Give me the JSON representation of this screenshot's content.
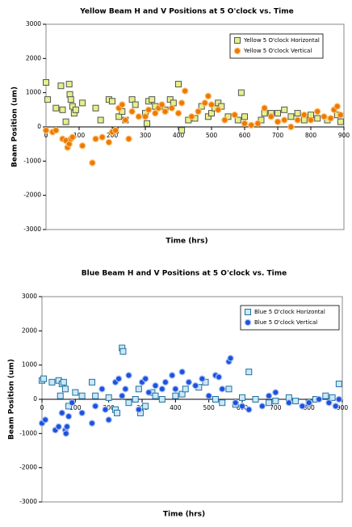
{
  "chart_data": [
    {
      "type": "scatter",
      "title": "Yellow Beam H and V Positions at 5 O'clock vs. Time",
      "x_label": "Time  (hrs)",
      "y_label": "Beam Position  (um)",
      "xlim": [
        0,
        900
      ],
      "xticks": [
        0,
        100,
        200,
        300,
        400,
        500,
        600,
        700,
        800,
        900
      ],
      "ylim": [
        -3000,
        3000
      ],
      "yticks": [
        -3000,
        -2000,
        -1000,
        0,
        1000,
        2000,
        3000
      ],
      "grid": false,
      "legend": "upper right",
      "series": [
        {
          "name": "Yellow 5 O'clock Horizontal",
          "marker": "square",
          "color": "#e6f08a",
          "edgecolor": "#555555",
          "x": [
            0,
            5,
            30,
            45,
            50,
            60,
            70,
            72,
            75,
            80,
            85,
            90,
            110,
            150,
            165,
            190,
            200,
            210,
            220,
            230,
            240,
            260,
            270,
            300,
            305,
            310,
            320,
            330,
            360,
            375,
            385,
            400,
            410,
            430,
            450,
            470,
            490,
            500,
            510,
            520,
            530,
            550,
            580,
            590,
            600,
            650,
            660,
            680,
            700,
            720,
            740,
            760,
            780,
            800,
            820,
            850,
            880,
            890
          ],
          "values": [
            1300,
            800,
            550,
            1200,
            500,
            150,
            1250,
            950,
            800,
            600,
            400,
            500,
            700,
            550,
            200,
            800,
            750,
            -100,
            300,
            450,
            200,
            800,
            650,
            400,
            100,
            750,
            800,
            600,
            500,
            800,
            700,
            1250,
            -100,
            200,
            250,
            600,
            300,
            400,
            550,
            700,
            600,
            300,
            200,
            1000,
            300,
            200,
            400,
            400,
            400,
            500,
            300,
            400,
            200,
            350,
            250,
            200,
            350,
            150
          ]
        },
        {
          "name": "Yellow 5 O'clock Vertical",
          "marker": "circle",
          "color": "#f07800",
          "edgecolor": "#f8c070",
          "x": [
            0,
            20,
            30,
            50,
            60,
            65,
            70,
            75,
            80,
            110,
            140,
            150,
            170,
            190,
            200,
            210,
            220,
            230,
            240,
            250,
            260,
            280,
            300,
            310,
            330,
            340,
            350,
            360,
            380,
            400,
            410,
            420,
            440,
            460,
            480,
            490,
            500,
            520,
            540,
            570,
            600,
            620,
            640,
            660,
            680,
            700,
            720,
            740,
            760,
            780,
            800,
            820,
            840,
            860,
            870,
            880,
            890
          ],
          "values": [
            -100,
            -150,
            -100,
            -350,
            -400,
            -600,
            -500,
            -350,
            -300,
            -550,
            -1050,
            -350,
            -300,
            -450,
            -150,
            -100,
            550,
            650,
            200,
            -350,
            450,
            300,
            300,
            500,
            400,
            550,
            650,
            450,
            550,
            400,
            700,
            1050,
            300,
            450,
            700,
            900,
            650,
            500,
            200,
            350,
            100,
            50,
            100,
            550,
            300,
            150,
            200,
            0,
            200,
            350,
            200,
            450,
            300,
            250,
            500,
            600,
            350
          ]
        }
      ]
    },
    {
      "type": "scatter",
      "title": "Blue Beam H and V Positions at 5 O'clock vs. Time",
      "x_label": "Time  (hrs)",
      "y_label": "Beam Position  (um)",
      "xlim": [
        0,
        900
      ],
      "xticks": [
        0,
        100,
        200,
        300,
        400,
        500,
        600,
        700,
        800,
        900
      ],
      "ylim": [
        -3000,
        3000
      ],
      "yticks": [
        -3000,
        -2000,
        -1000,
        0,
        1000,
        2000,
        3000
      ],
      "grid": false,
      "legend": "upper right",
      "series": [
        {
          "name": "Blue 5 O'clock Horizontal",
          "marker": "square",
          "color": "#cce8f8",
          "edgecolor": "#2070a0",
          "x": [
            0,
            5,
            30,
            50,
            55,
            60,
            65,
            70,
            80,
            100,
            120,
            150,
            160,
            200,
            220,
            225,
            240,
            243,
            260,
            280,
            290,
            295,
            310,
            330,
            340,
            360,
            400,
            420,
            430,
            470,
            490,
            520,
            540,
            560,
            580,
            600,
            620,
            640,
            680,
            700,
            740,
            760,
            800,
            820,
            850,
            870,
            890
          ],
          "values": [
            550,
            600,
            500,
            550,
            100,
            450,
            500,
            300,
            -200,
            200,
            100,
            500,
            100,
            50,
            -300,
            -400,
            1500,
            1400,
            -100,
            0,
            300,
            -400,
            -200,
            200,
            100,
            0,
            100,
            150,
            300,
            350,
            500,
            0,
            -100,
            300,
            -150,
            50,
            800,
            0,
            -100,
            -50,
            50,
            -50,
            -100,
            0,
            100,
            50,
            450
          ]
        },
        {
          "name": "Blue 5 O'clock Vertical",
          "marker": "circle",
          "color": "#2050e0",
          "edgecolor": "#a8c4f0",
          "x": [
            0,
            10,
            40,
            50,
            60,
            70,
            72,
            75,
            80,
            90,
            120,
            150,
            160,
            180,
            190,
            200,
            220,
            230,
            240,
            250,
            260,
            290,
            300,
            310,
            320,
            340,
            360,
            370,
            390,
            400,
            420,
            440,
            460,
            480,
            500,
            520,
            530,
            540,
            560,
            565,
            580,
            600,
            620,
            660,
            680,
            700,
            740,
            780,
            800,
            830,
            860,
            880,
            890
          ],
          "values": [
            -700,
            -600,
            -900,
            -800,
            -400,
            -900,
            -1000,
            -800,
            -500,
            -100,
            -400,
            -700,
            -200,
            300,
            -300,
            -600,
            500,
            600,
            100,
            300,
            700,
            -300,
            500,
            600,
            200,
            400,
            300,
            500,
            700,
            300,
            800,
            500,
            400,
            600,
            100,
            700,
            650,
            300,
            1100,
            1200,
            -100,
            -200,
            -300,
            -200,
            100,
            200,
            -100,
            -200,
            -100,
            0,
            -100,
            -200,
            0
          ]
        }
      ]
    }
  ]
}
